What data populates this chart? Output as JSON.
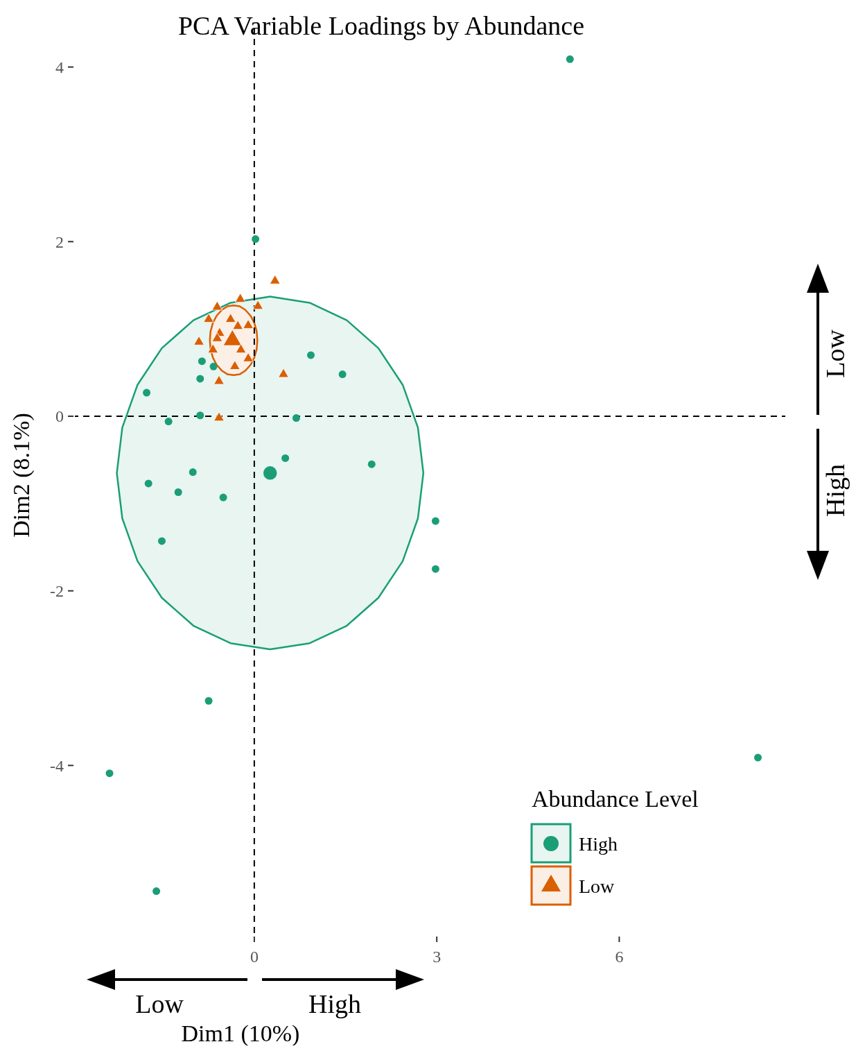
{
  "chart_data": {
    "type": "scatter",
    "title": "PCA Variable Loadings by Abundance",
    "xlabel": "Dim1 (10%)",
    "ylabel": "Dim2 (8.1%)",
    "legend_title": "Abundance Level",
    "legend": "bottom right",
    "grid": false,
    "xlim": [
      -2.95,
      8.73
    ],
    "xticks": [
      0,
      3,
      6
    ],
    "ylim": [
      -5.92,
      4.45
    ],
    "yticks": [
      -4,
      -2,
      0,
      2,
      4
    ],
    "ref_lines": [
      {
        "axis": "x",
        "value": 0,
        "line_style": "dashed"
      },
      {
        "axis": "y",
        "value": 0,
        "line_style": "dashed"
      }
    ],
    "annotations": [
      "Low",
      "High",
      "Low",
      "High"
    ],
    "series": [
      {
        "type": "area",
        "color": "#1b9e77",
        "x": [
          2.78,
          2.69,
          2.44,
          2.04,
          1.52,
          0.91,
          0.26,
          -0.39,
          -1.0,
          -1.52,
          -1.92,
          -2.17,
          -2.26,
          -2.17,
          -1.92,
          -1.52,
          -1.0,
          -0.39,
          0.26,
          0.91,
          1.52,
          2.04,
          2.44,
          2.69
        ],
        "values": [
          -0.65,
          -0.13,
          0.36,
          0.78,
          1.1,
          1.3,
          1.37,
          1.3,
          1.1,
          0.78,
          0.36,
          -0.13,
          -0.65,
          -1.17,
          -1.66,
          -2.08,
          -2.4,
          -2.6,
          -2.67,
          -2.6,
          -2.4,
          -2.08,
          -1.66,
          -1.17
        ]
      },
      {
        "type": "area",
        "color": "#d95f02",
        "x": [
          0.05,
          0.04,
          0.0,
          -0.06,
          -0.15,
          -0.24,
          -0.34,
          -0.44,
          -0.53,
          -0.62,
          -0.68,
          -0.72,
          -0.73,
          -0.72,
          -0.68,
          -0.62,
          -0.53,
          -0.44,
          -0.34,
          -0.24,
          -0.15,
          -0.06,
          0.0,
          0.04
        ],
        "values": [
          0.87,
          0.97,
          1.07,
          1.15,
          1.22,
          1.26,
          1.27,
          1.26,
          1.22,
          1.15,
          1.07,
          0.97,
          0.87,
          0.77,
          0.67,
          0.59,
          0.52,
          0.48,
          0.47,
          0.48,
          0.52,
          0.59,
          0.67,
          0.77
        ]
      },
      {
        "color": "#1b9e77",
        "marker": "circle",
        "x": [
          0.26
        ],
        "values": [
          -0.65
        ]
      },
      {
        "color": "#d95f02",
        "marker": "triangle",
        "x": [
          -0.36
        ],
        "values": [
          0.87
        ]
      },
      {
        "name": "High",
        "color": "#1b9e77",
        "marker": "circle",
        "x": [
          5.19,
          0.02,
          0.93,
          1.45,
          -0.86,
          -0.67,
          -0.89,
          -1.77,
          -0.89,
          -1.41,
          0.69,
          0.51,
          -1.01,
          -1.74,
          -1.25,
          -0.51,
          1.93,
          2.98,
          2.98,
          -1.52,
          -0.75,
          -2.38,
          -1.61,
          8.28
        ],
        "values": [
          4.09,
          2.03,
          0.7,
          0.48,
          0.63,
          0.57,
          0.43,
          0.27,
          0.01,
          -0.06,
          -0.02,
          -0.48,
          -0.64,
          -0.77,
          -0.87,
          -0.93,
          -0.55,
          -1.2,
          -1.75,
          -1.43,
          -3.26,
          -4.09,
          -5.44,
          -3.91
        ]
      },
      {
        "name": "Low",
        "color": "#d95f02",
        "marker": "triangle",
        "x": [
          0.34,
          -0.23,
          0.06,
          -0.61,
          -0.75,
          -0.39,
          -0.27,
          -0.1,
          -0.57,
          -0.91,
          -0.61,
          -0.68,
          -0.22,
          -0.1,
          -0.32,
          -0.58,
          0.48,
          -0.58
        ],
        "values": [
          1.55,
          1.34,
          1.26,
          1.25,
          1.11,
          1.11,
          1.03,
          1.04,
          0.95,
          0.85,
          0.89,
          0.76,
          0.76,
          0.66,
          0.57,
          0.4,
          0.48,
          -0.02
        ]
      }
    ]
  }
}
